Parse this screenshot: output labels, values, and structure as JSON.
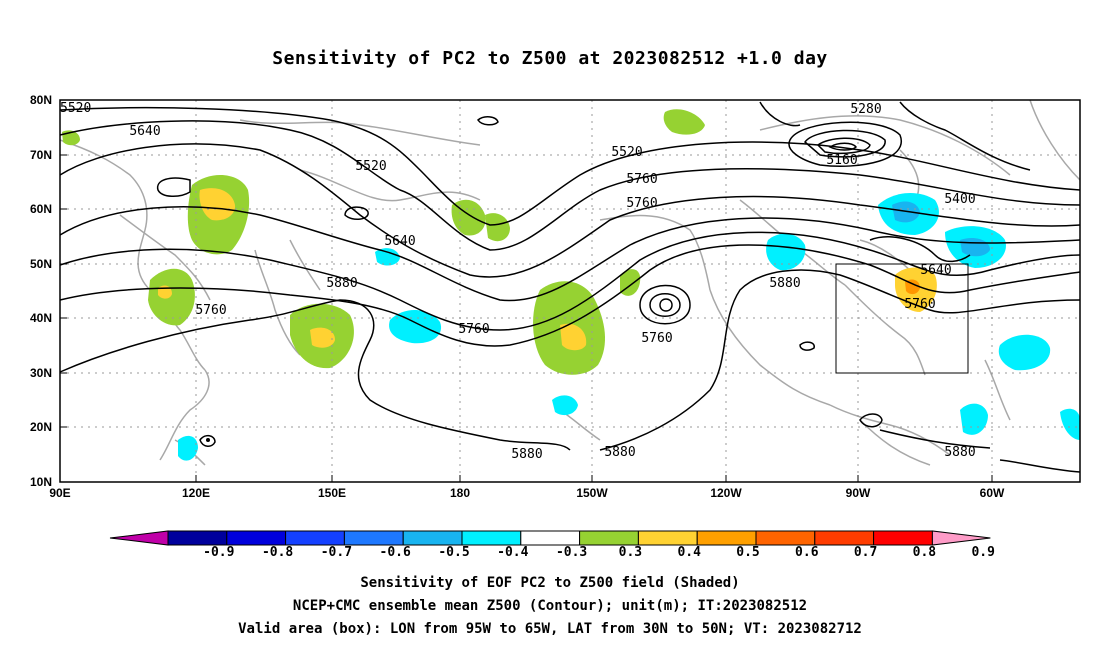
{
  "title": "Sensitivity of PC2 to Z500 at 2023082512 +1.0 day",
  "y_axis": [
    "80N",
    "70N",
    "60N",
    "50N",
    "40N",
    "30N",
    "20N",
    "10N"
  ],
  "x_axis": [
    "90E",
    "120E",
    "150E",
    "180",
    "150W",
    "120W",
    "90W",
    "60W"
  ],
  "contour_labels": [
    "5520",
    "5640",
    "5520",
    "5520",
    "5640",
    "5760",
    "5880",
    "5760",
    "5640",
    "5760",
    "5880",
    "5760",
    "5280",
    "5160",
    "5400",
    "5640",
    "5760",
    "5880",
    "5880",
    "5880",
    "5880"
  ],
  "colorbar": {
    "labels": [
      "-0.9",
      "-0.8",
      "-0.7",
      "-0.6",
      "-0.5",
      "-0.4",
      "-0.3",
      "0.3",
      "0.4",
      "0.5",
      "0.6",
      "0.7",
      "0.8",
      "0.9"
    ],
    "colors": [
      "#c000a8",
      "#00009c",
      "#0000dc",
      "#1440ff",
      "#1e78ff",
      "#18b4f0",
      "#00f0ff",
      "#ffffff",
      "#96d232",
      "#ffd232",
      "#ffa000",
      "#ff6400",
      "#ff3c00",
      "#ff0000",
      "#ff9cc8"
    ]
  },
  "caption": [
    "Sensitivity of EOF PC2 to Z500 field (Shaded)",
    "NCEP+CMC ensemble mean Z500 (Contour); unit(m); IT:2023082512",
    "Valid area (box): LON from 95W to 65W, LAT from 30N to 50N; VT: 2023082712"
  ]
}
